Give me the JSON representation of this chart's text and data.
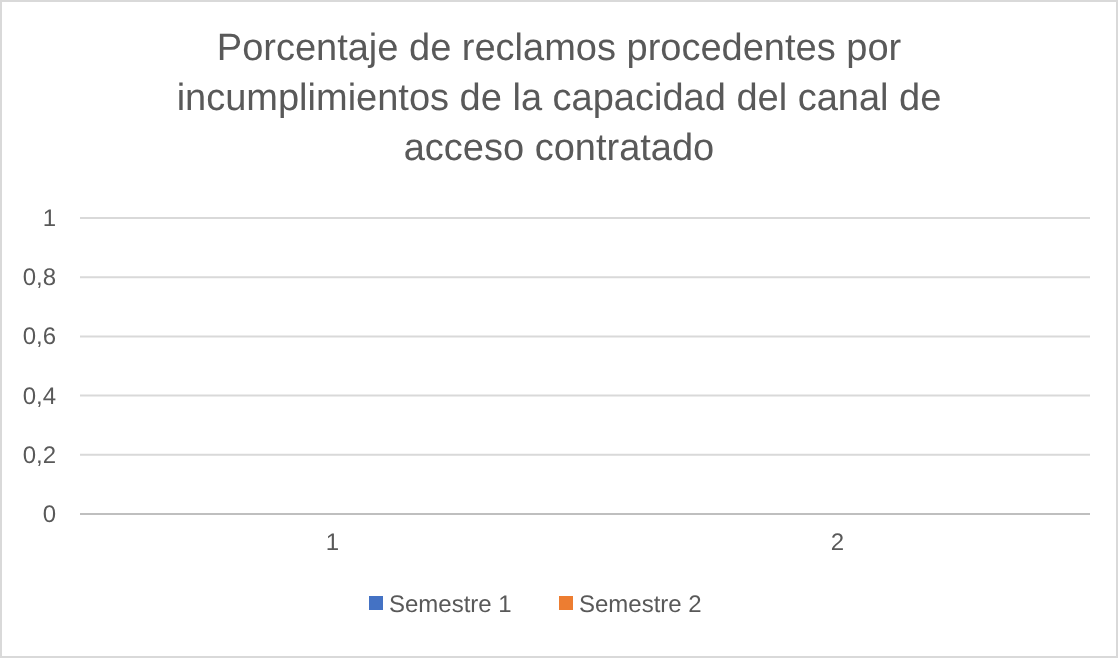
{
  "chart_data": {
    "type": "bar",
    "title": "Porcentaje de reclamos procedentes por incumplimientos de la capacidad del canal de acceso contratado",
    "categories": [
      "1",
      "2"
    ],
    "series": [
      {
        "name": "Semestre 1",
        "color": "#4472c4",
        "values": [
          null,
          null
        ]
      },
      {
        "name": "Semestre 2",
        "color": "#ed7d31",
        "values": [
          null,
          null
        ]
      }
    ],
    "ylim": [
      0,
      1
    ],
    "yticks": [
      0,
      {
        "value": 0.2,
        "label": "0,2"
      },
      {
        "value": 0.4,
        "label": "0,4"
      },
      {
        "value": 0.6,
        "label": "0,6"
      },
      {
        "value": 0.8,
        "label": "0,8"
      },
      1
    ],
    "grid": "y",
    "legend": "bottom"
  }
}
